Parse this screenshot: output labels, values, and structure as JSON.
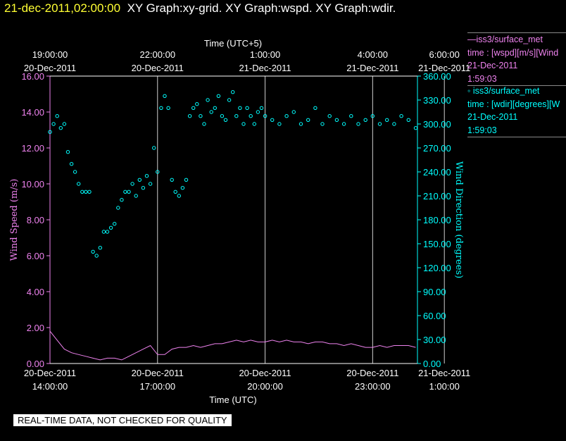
{
  "header": {
    "datetime": "21-dec-2011,02:00:00",
    "titles": "XY Graph:xy-grid.  XY Graph:wspd.  XY Graph:wdir."
  },
  "legend": [
    {
      "name": "—iss3/surface_met",
      "line1": "time : [wspd][m/s][Wind",
      "line2": "21-Dec-2011",
      "line3": "1:59:03",
      "color": "#ee82ee"
    },
    {
      "name": "◦ iss3/surface_met",
      "line1": "time : [wdir][degrees][W",
      "line2": "21-Dec-2011",
      "line3": "1:59:03",
      "color": "#00ffff"
    }
  ],
  "notice": "REAL-TIME DATA, NOT CHECKED FOR QUALITY",
  "chart_data": {
    "type": "scatter",
    "x_bottom_label": "Time (UTC)",
    "x_top_label": "Time (UTC+5)",
    "ylabel_left": "Wind Speed (m/s)",
    "ylabel_right": "Wind Direction (degrees)",
    "xlim_hours": [
      14.0,
      24.25
    ],
    "ylim_left": [
      0,
      16
    ],
    "ylim_right": [
      0,
      360
    ],
    "grid": "vertical",
    "x_bottom_ticks": [
      {
        "hour": 14,
        "date": "20-Dec-2011",
        "time": "14:00:00"
      },
      {
        "hour": 17,
        "date": "20-Dec-2011",
        "time": "17:00:00"
      },
      {
        "hour": 20,
        "date": "20-Dec-2011",
        "time": "20:00:00"
      },
      {
        "hour": 23,
        "date": "20-Dec-2011",
        "time": "23:00:00"
      },
      {
        "hour": 25,
        "date": "21-Dec-2011",
        "time": "1:00:00"
      }
    ],
    "x_top_ticks": [
      {
        "hour": 14,
        "time": "19:00:00",
        "date": "20-Dec-2011"
      },
      {
        "hour": 17,
        "time": "22:00:00",
        "date": "20-Dec-2011"
      },
      {
        "hour": 20,
        "time": "1:00:00",
        "date": "21-Dec-2011"
      },
      {
        "hour": 23,
        "time": "4:00:00",
        "date": "21-Dec-2011"
      },
      {
        "hour": 25,
        "time": "6:00:00",
        "date": "21-Dec-2011"
      }
    ],
    "y_left_ticks": [
      "0.00",
      "2.00",
      "4.00",
      "6.00",
      "8.00",
      "10.00",
      "12.00",
      "14.00",
      "16.00"
    ],
    "y_right_ticks": [
      "0.00",
      "30.00",
      "60.00",
      "90.00",
      "120.00",
      "150.00",
      "180.00",
      "210.00",
      "240.00",
      "270.00",
      "300.00",
      "330.00",
      "360.00"
    ],
    "series": [
      {
        "name": "iss3/surface_met",
        "variable": "wspd",
        "units": "m/s",
        "axis": "left",
        "style": "line",
        "color": "#ee82ee",
        "x": [
          14.0,
          14.2,
          14.4,
          14.6,
          14.8,
          15.0,
          15.2,
          15.4,
          15.6,
          15.8,
          16.0,
          16.2,
          16.4,
          16.6,
          16.8,
          17.0,
          17.2,
          17.4,
          17.6,
          17.8,
          18.0,
          18.2,
          18.4,
          18.6,
          18.8,
          19.0,
          19.2,
          19.4,
          19.6,
          19.8,
          20.0,
          20.2,
          20.4,
          20.6,
          20.8,
          21.0,
          21.2,
          21.4,
          21.6,
          21.8,
          22.0,
          22.2,
          22.4,
          22.6,
          22.8,
          23.0,
          23.2,
          23.4,
          23.6,
          23.8,
          24.0,
          24.2
        ],
        "y": [
          1.8,
          1.3,
          0.8,
          0.6,
          0.5,
          0.4,
          0.3,
          0.2,
          0.3,
          0.3,
          0.2,
          0.4,
          0.6,
          0.8,
          1.0,
          0.5,
          0.5,
          0.8,
          0.9,
          0.9,
          1.0,
          0.9,
          1.0,
          1.1,
          1.1,
          1.2,
          1.3,
          1.2,
          1.3,
          1.2,
          1.2,
          1.3,
          1.2,
          1.3,
          1.2,
          1.2,
          1.1,
          1.2,
          1.2,
          1.1,
          1.1,
          1.0,
          1.1,
          1.0,
          0.9,
          0.9,
          1.0,
          0.9,
          1.0,
          1.0,
          1.0,
          0.9
        ]
      },
      {
        "name": "iss3/surface_met",
        "variable": "wdir",
        "units": "degrees",
        "axis": "right",
        "style": "markers",
        "color": "#00ffff",
        "x": [
          14.0,
          14.1,
          14.2,
          14.3,
          14.4,
          14.5,
          14.6,
          14.7,
          14.8,
          14.9,
          15.0,
          15.1,
          15.2,
          15.3,
          15.4,
          15.5,
          15.6,
          15.7,
          15.8,
          15.9,
          16.0,
          16.1,
          16.2,
          16.3,
          16.4,
          16.5,
          16.6,
          16.7,
          16.8,
          16.9,
          17.0,
          17.1,
          17.2,
          17.3,
          17.4,
          17.5,
          17.6,
          17.7,
          17.8,
          17.9,
          18.0,
          18.1,
          18.2,
          18.3,
          18.4,
          18.5,
          18.6,
          18.7,
          18.8,
          18.9,
          19.0,
          19.1,
          19.2,
          19.3,
          19.4,
          19.5,
          19.6,
          19.7,
          19.8,
          19.9,
          20.0,
          20.2,
          20.4,
          20.6,
          20.8,
          21.0,
          21.2,
          21.4,
          21.6,
          21.8,
          22.0,
          22.2,
          22.4,
          22.6,
          22.8,
          23.0,
          23.2,
          23.4,
          23.6,
          23.8,
          24.0,
          24.2
        ],
        "y": [
          290,
          300,
          310,
          295,
          300,
          265,
          250,
          240,
          225,
          215,
          215,
          215,
          140,
          135,
          145,
          165,
          165,
          170,
          175,
          195,
          205,
          215,
          215,
          225,
          210,
          230,
          220,
          235,
          225,
          270,
          240,
          320,
          335,
          320,
          230,
          215,
          210,
          220,
          230,
          310,
          320,
          325,
          310,
          300,
          330,
          315,
          320,
          335,
          310,
          305,
          330,
          340,
          310,
          320,
          300,
          320,
          310,
          300,
          315,
          320,
          310,
          305,
          300,
          310,
          315,
          300,
          305,
          320,
          300,
          310,
          305,
          300,
          310,
          300,
          305,
          310,
          300,
          305,
          300,
          310,
          305,
          295
        ]
      }
    ]
  }
}
